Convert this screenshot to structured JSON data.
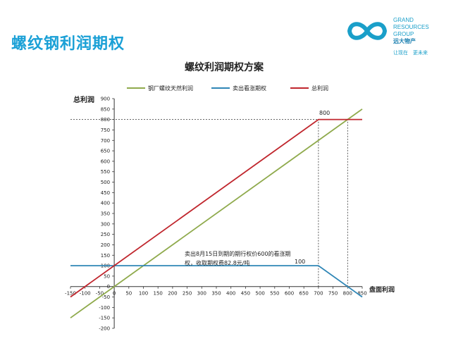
{
  "page": {
    "title": "螺纹钢利润期权",
    "title_color": "#1aa0d6"
  },
  "logo": {
    "lines": [
      "GRAND",
      "RESOURCES",
      "GROUP"
    ],
    "cn_name": "远大物产",
    "slogan": "让现在　更未来",
    "color": "#1a9fc9"
  },
  "chart_data": {
    "type": "line",
    "title": "螺纹利润期权方案",
    "xlabel": "盘面利润",
    "ylabel": "总利润",
    "xlim": [
      -150,
      850
    ],
    "ylim": [
      -200,
      900
    ],
    "xticks": [
      -150,
      -100,
      -50,
      0,
      50,
      100,
      150,
      200,
      250,
      300,
      350,
      400,
      450,
      500,
      550,
      600,
      650,
      700,
      750,
      800,
      850
    ],
    "yticks": [
      -200,
      -150,
      -100,
      -50,
      0,
      50,
      100,
      150,
      200,
      250,
      300,
      350,
      400,
      450,
      500,
      550,
      600,
      650,
      700,
      750,
      800,
      850,
      900
    ],
    "grid": false,
    "legend_position": "top",
    "series": [
      {
        "name": "钢厂螺纹天然利润",
        "color": "#8faa4c",
        "x": [
          -150,
          850
        ],
        "y": [
          -150,
          850
        ]
      },
      {
        "name": "卖出看涨期权",
        "color": "#2f86b6",
        "x": [
          -150,
          700,
          850
        ],
        "y": [
          100,
          100,
          -50
        ]
      },
      {
        "name": "总利润",
        "color": "#c0262d",
        "x": [
          -150,
          700,
          850
        ],
        "y": [
          -50,
          800,
          800
        ]
      }
    ],
    "annotations": {
      "label_800": "800",
      "label_100": "100",
      "note_line1": "卖出8月15日到期的期行权价600的看涨期",
      "note_line2": "权，收取期权费82.8元/吨"
    },
    "reference_lines": [
      {
        "type": "h",
        "from_x": -150,
        "to_x": 700,
        "y": 800
      },
      {
        "type": "v",
        "x": 700,
        "from_y": 0,
        "to_y": 800
      },
      {
        "type": "v",
        "x": 800,
        "from_y": 0,
        "to_y": 800
      }
    ]
  }
}
